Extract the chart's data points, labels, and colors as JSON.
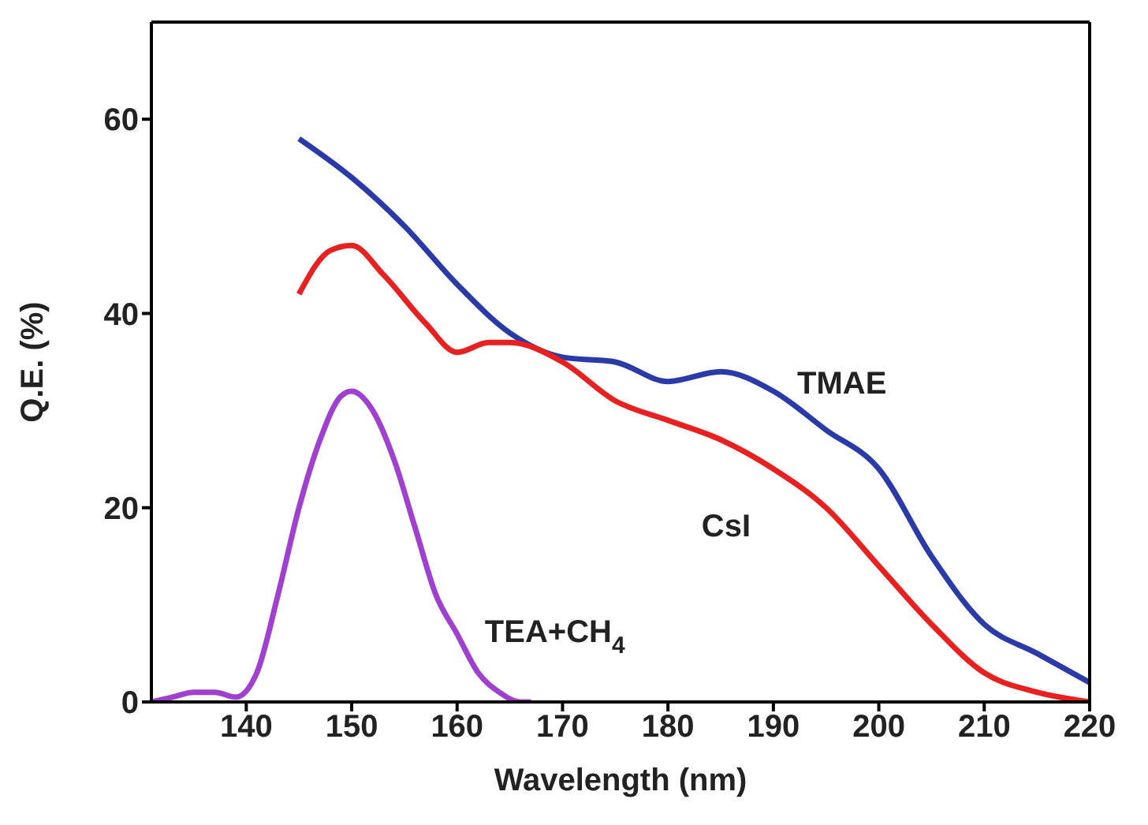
{
  "chart_data": {
    "type": "line",
    "xlabel": "Wavelength (nm)",
    "ylabel": "Q.E. (%)",
    "xlim": [
      131,
      220
    ],
    "ylim": [
      0,
      70
    ],
    "xticks": [
      140,
      150,
      160,
      170,
      180,
      190,
      200,
      210,
      220
    ],
    "yticks": [
      0,
      20,
      40,
      60
    ],
    "marker": "none",
    "line_style": "solid",
    "series": [
      {
        "name": "TMAE",
        "color": "#2a3aa8",
        "x": [
          145,
          150,
          155,
          160,
          165,
          170,
          175,
          180,
          185,
          190,
          195,
          200,
          205,
          210,
          215,
          220
        ],
        "values": [
          58,
          54,
          49,
          43,
          38,
          35.5,
          35,
          33,
          34,
          32,
          28,
          24,
          15,
          8,
          5,
          2
        ]
      },
      {
        "name": "CsI",
        "color": "#e82020",
        "x": [
          145,
          148,
          150,
          153,
          157,
          160,
          163,
          165,
          170,
          175,
          180,
          185,
          190,
          195,
          200,
          205,
          210,
          215,
          220
        ],
        "values": [
          42,
          46.5,
          47,
          44,
          39,
          36,
          37,
          37,
          35,
          31,
          29,
          27,
          24,
          20,
          14,
          8,
          3,
          1,
          0
        ]
      },
      {
        "name": "TEA+CH$_{4}$",
        "color": "#a040d0",
        "x": [
          131,
          133,
          135,
          137,
          139,
          141,
          143,
          145,
          147,
          149,
          150,
          152,
          154,
          156,
          158,
          160,
          162,
          164,
          166,
          167
        ],
        "values": [
          0,
          0.5,
          1,
          1,
          0.5,
          3,
          11,
          20,
          27,
          31.5,
          32,
          30,
          25,
          18,
          11,
          7,
          3,
          1,
          0,
          0
        ]
      }
    ]
  }
}
